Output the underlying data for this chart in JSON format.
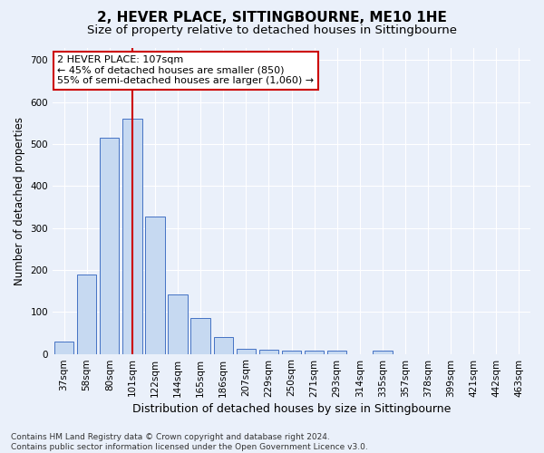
{
  "title": "2, HEVER PLACE, SITTINGBOURNE, ME10 1HE",
  "subtitle": "Size of property relative to detached houses in Sittingbourne",
  "xlabel": "Distribution of detached houses by size in Sittingbourne",
  "ylabel": "Number of detached properties",
  "categories": [
    "37sqm",
    "58sqm",
    "80sqm",
    "101sqm",
    "122sqm",
    "144sqm",
    "165sqm",
    "186sqm",
    "207sqm",
    "229sqm",
    "250sqm",
    "271sqm",
    "293sqm",
    "314sqm",
    "335sqm",
    "357sqm",
    "378sqm",
    "399sqm",
    "421sqm",
    "442sqm",
    "463sqm"
  ],
  "values": [
    30,
    190,
    515,
    560,
    328,
    142,
    86,
    40,
    13,
    10,
    8,
    8,
    8,
    0,
    8,
    0,
    0,
    0,
    0,
    0,
    0
  ],
  "bar_color": "#c6d9f1",
  "bar_edge_color": "#4472c4",
  "vline_x": 3.0,
  "annotation_text": "2 HEVER PLACE: 107sqm\n← 45% of detached houses are smaller (850)\n55% of semi-detached houses are larger (1,060) →",
  "annotation_box_color": "#ffffff",
  "annotation_box_edge_color": "#cc0000",
  "ylim": [
    0,
    730
  ],
  "yticks": [
    0,
    100,
    200,
    300,
    400,
    500,
    600,
    700
  ],
  "footer": "Contains HM Land Registry data © Crown copyright and database right 2024.\nContains public sector information licensed under the Open Government Licence v3.0.",
  "title_fontsize": 11,
  "subtitle_fontsize": 9.5,
  "xlabel_fontsize": 9,
  "ylabel_fontsize": 8.5,
  "tick_fontsize": 7.5,
  "annotation_fontsize": 8,
  "footer_fontsize": 6.5,
  "background_color": "#eaf0fa",
  "plot_bg_color": "#eaf0fa",
  "grid_color": "#ffffff",
  "vline_color": "#cc0000",
  "vline_linewidth": 1.5
}
